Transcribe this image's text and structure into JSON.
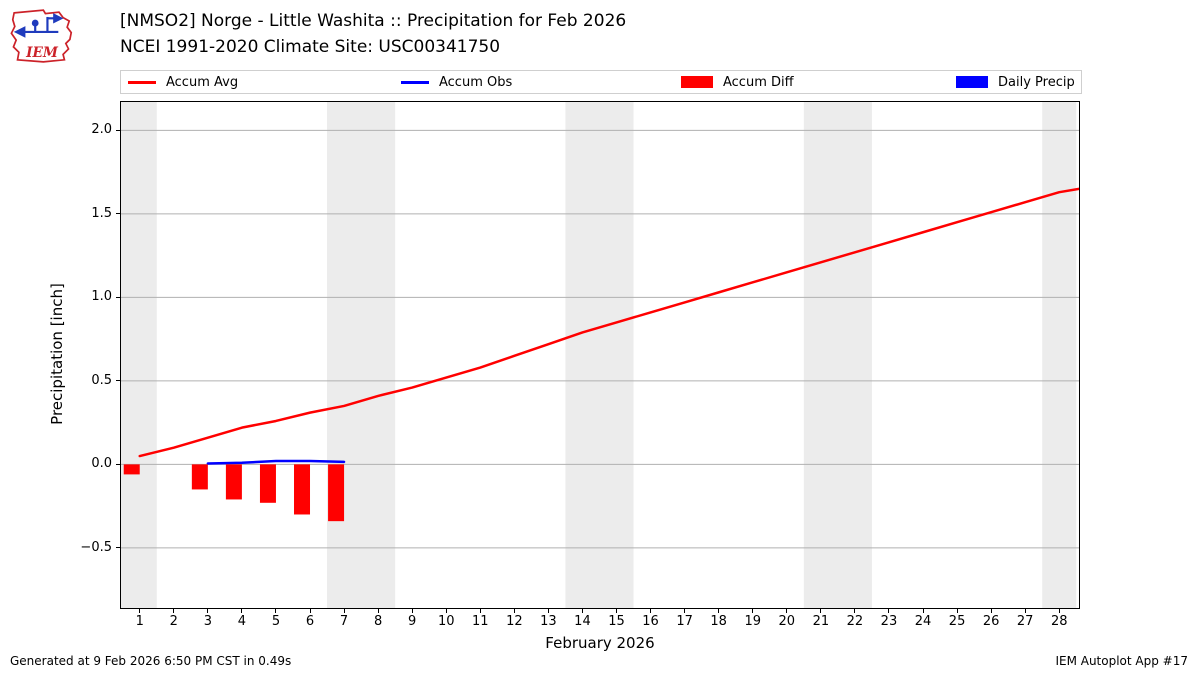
{
  "header": {
    "title_line1": "[NMSO2] Norge - Little Washita :: Precipitation for Feb 2026",
    "title_line2": "NCEI 1991-2020 Climate Site: USC00341750",
    "logo_text": "IEM"
  },
  "legend": {
    "items": [
      {
        "label": "Accum Avg",
        "color": "#ff0000",
        "swatch": "line"
      },
      {
        "label": "Accum Obs",
        "color": "#0000ff",
        "swatch": "line"
      },
      {
        "label": "Accum Diff",
        "color": "#ff0000",
        "swatch": "rect"
      },
      {
        "label": "Daily Precip",
        "color": "#0000ff",
        "swatch": "rect"
      }
    ]
  },
  "footer": {
    "left": "Generated at 9 Feb 2026 6:50 PM CST in 0.49s",
    "right": "IEM Autoplot App #17"
  },
  "chart_data": {
    "type": "line",
    "title": "[NMSO2] Norge - Little Washita :: Precipitation for Feb 2026",
    "subtitle": "NCEI 1991-2020 Climate Site: USC00341750",
    "xlabel": "February 2026",
    "ylabel": "Precipitation [inch]",
    "xlim": [
      0.45,
      28.58
    ],
    "ylim": [
      -0.86,
      2.17
    ],
    "grid": "horizontal",
    "legend_position": "top",
    "colors": {
      "avg": "#ff0000",
      "obs": "#0000ff",
      "diff": "#ff0000",
      "daily": "#0000ff",
      "weekend_band": "#ececec",
      "gridline": "#b0b0b0"
    },
    "x_ticks": [
      1,
      2,
      3,
      4,
      5,
      6,
      7,
      8,
      9,
      10,
      11,
      12,
      13,
      14,
      15,
      16,
      17,
      18,
      19,
      20,
      21,
      22,
      23,
      24,
      25,
      26,
      27,
      28
    ],
    "y_ticks": [
      {
        "v": -0.5,
        "label": "−0.5"
      },
      {
        "v": 0.0,
        "label": "0.0"
      },
      {
        "v": 0.5,
        "label": "0.5"
      },
      {
        "v": 1.0,
        "label": "1.0"
      },
      {
        "v": 1.5,
        "label": "1.5"
      },
      {
        "v": 2.0,
        "label": "2.0"
      }
    ],
    "weekend_shading_day_ranges": [
      [
        0.45,
        1.5
      ],
      [
        6.5,
        8.5
      ],
      [
        13.5,
        15.5
      ],
      [
        20.5,
        22.5
      ],
      [
        27.5,
        28.5
      ]
    ],
    "series": [
      {
        "name": "Accum Avg",
        "type": "line",
        "color": "#ff0000",
        "x": [
          1,
          2,
          3,
          4,
          5,
          6,
          7,
          8,
          9,
          10,
          11,
          12,
          13,
          14,
          15,
          16,
          17,
          18,
          19,
          20,
          21,
          22,
          23,
          24,
          25,
          26,
          27,
          28,
          28.58
        ],
        "y": [
          0.05,
          0.1,
          0.16,
          0.22,
          0.26,
          0.31,
          0.35,
          0.41,
          0.46,
          0.52,
          0.58,
          0.65,
          0.72,
          0.79,
          0.85,
          0.91,
          0.97,
          1.03,
          1.09,
          1.15,
          1.21,
          1.27,
          1.33,
          1.39,
          1.45,
          1.51,
          1.57,
          1.63,
          1.65
        ]
      },
      {
        "name": "Accum Obs",
        "type": "line",
        "color": "#0000ff",
        "x": [
          3,
          4,
          5,
          6,
          7
        ],
        "y": [
          0.005,
          0.01,
          0.02,
          0.02,
          0.015
        ]
      },
      {
        "name": "Accum Diff",
        "type": "bar",
        "color": "#ff0000",
        "x": [
          1,
          3,
          4,
          5,
          6,
          7
        ],
        "y": [
          -0.06,
          -0.15,
          -0.21,
          -0.23,
          -0.3,
          -0.34
        ]
      },
      {
        "name": "Daily Precip",
        "type": "bar",
        "color": "#0000ff",
        "x": [],
        "y": []
      }
    ]
  }
}
